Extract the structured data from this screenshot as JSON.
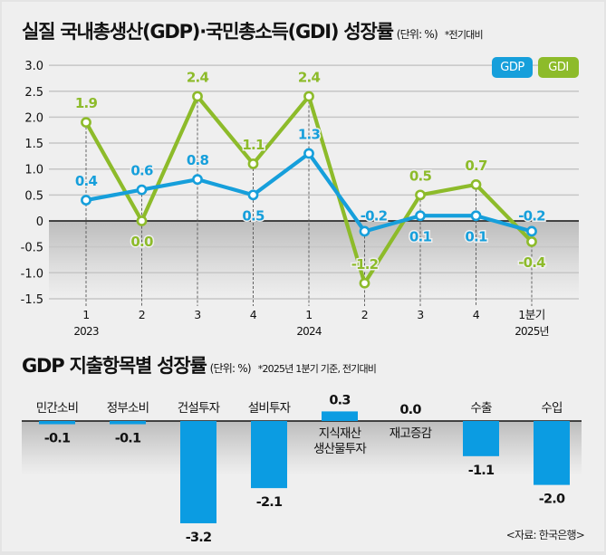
{
  "titles": {
    "line_chart": {
      "main": "실질 국내총생산(GDP)·국민총소득(GDI) 성장률",
      "unit": "(단위: %)",
      "note": "*전기대비"
    },
    "bar_chart": {
      "main": "GDP 지출항목별 성장률",
      "unit": "(단위: %)",
      "note": "*2025년 1분기 기준, 전기대비"
    }
  },
  "colors": {
    "gdp": "#169fdb",
    "gdi": "#8dbb2a",
    "bar": "#0b9ce2"
  },
  "source": "<자료: 한국은행>",
  "chart_data": [
    {
      "type": "line",
      "title": "실질 국내총생산(GDP)·국민총소득(GDI) 성장률",
      "unit": "%",
      "xlabel": "",
      "ylabel": "",
      "ylim": [
        -1.5,
        3.0
      ],
      "yticks": [
        "3.0",
        "2.5",
        "2.0",
        "1.5",
        "1.0",
        "0.5",
        "0",
        "-0.5",
        "-1.0",
        "-1.5"
      ],
      "ytick_values": [
        3.0,
        2.5,
        2.0,
        1.5,
        1.0,
        0.5,
        0,
        -0.5,
        -1.0,
        -1.5
      ],
      "categories": [
        "1",
        "2",
        "3",
        "4",
        "1",
        "2",
        "3",
        "4",
        "1분기"
      ],
      "year_labels": [
        {
          "index": 0,
          "label": "2023"
        },
        {
          "index": 4,
          "label": "2024"
        },
        {
          "index": 8,
          "label": "2025년"
        }
      ],
      "grid": true,
      "legend": "top-right",
      "series": [
        {
          "name": "GDP",
          "values": [
            0.4,
            0.6,
            0.8,
            0.5,
            1.3,
            -0.2,
            0.1,
            0.1,
            -0.2
          ],
          "labels": [
            "0.4",
            "0.6",
            "0.8",
            "0.5",
            "1.3",
            "-0.2",
            "0.1",
            "0.1",
            "-0.2"
          ]
        },
        {
          "name": "GDI",
          "values": [
            1.9,
            0.0,
            2.4,
            1.1,
            2.4,
            -1.2,
            0.5,
            0.7,
            -0.4
          ],
          "labels": [
            "1.9",
            "0.0",
            "2.4",
            "1.1",
            "2.4",
            "-1.2",
            "0.5",
            "0.7",
            "-0.4"
          ]
        }
      ]
    },
    {
      "type": "bar",
      "title": "GDP 지출항목별 성장률",
      "unit": "%",
      "categories": [
        "민간소비",
        "정부소비",
        "건설투자",
        "설비투자",
        "지식재산 생산물투자",
        "재고증감",
        "수출",
        "수입"
      ],
      "category_lines": [
        [
          "민간소비"
        ],
        [
          "정부소비"
        ],
        [
          "건설투자"
        ],
        [
          "설비투자"
        ],
        [
          "지식재산",
          "생산물투자"
        ],
        [
          "재고증감"
        ],
        [
          "수출"
        ],
        [
          "수입"
        ]
      ],
      "values": [
        -0.1,
        -0.1,
        -3.2,
        -2.1,
        0.3,
        0.0,
        -1.1,
        -2.0
      ],
      "labels": [
        "-0.1",
        "-0.1",
        "-3.2",
        "-2.1",
        "0.3",
        "0.0",
        "-1.1",
        "-2.0"
      ],
      "ylim": [
        -3.2,
        0.3
      ]
    }
  ]
}
